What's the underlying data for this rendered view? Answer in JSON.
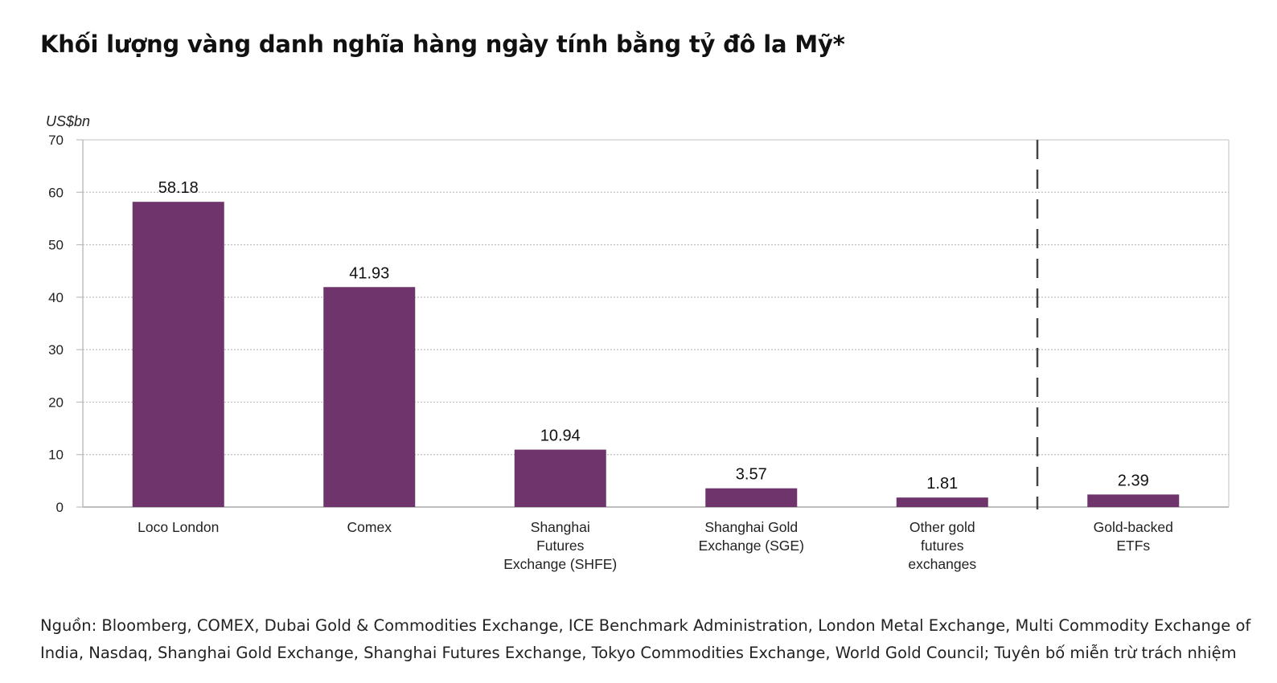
{
  "title": "Khối lượng vàng danh nghĩa hàng ngày tính bằng tỷ đô la Mỹ*",
  "source": "Nguồn: Bloomberg, COMEX, Dubai Gold & Commodities Exchange, ICE Benchmark Administration, London Metal Exchange, Multi Commodity Exchange of India, Nasdaq, Shanghai Gold Exchange, Shanghai Futures Exchange, Tokyo Commodities Exchange, World Gold Council; Tuyên bố miễn trừ trách nhiệm",
  "chart_data": {
    "type": "bar",
    "title": "",
    "xlabel": "",
    "ylabel": "US$bn",
    "ylim": [
      0,
      70
    ],
    "yticks": [
      "0",
      "10",
      "20",
      "30",
      "40",
      "50",
      "60",
      "70"
    ],
    "grid": true,
    "categories": [
      [
        "Loco London"
      ],
      [
        "Comex"
      ],
      [
        "Shanghai",
        "Futures",
        "Exchange (SHFE)"
      ],
      [
        "Shanghai Gold",
        "Exchange (SGE)"
      ],
      [
        "Other gold",
        "futures",
        "exchanges"
      ],
      [
        "Gold-backed",
        "ETFs"
      ]
    ],
    "values": [
      58.18,
      41.93,
      10.94,
      3.57,
      1.81,
      2.39
    ],
    "value_labels": [
      "58.18",
      "41.93",
      "10.94",
      "3.57",
      "1.81",
      "2.39"
    ],
    "bar_color": "#6f346b",
    "separator": "dashed line between Other gold futures exchanges and Gold-backed ETFs"
  }
}
